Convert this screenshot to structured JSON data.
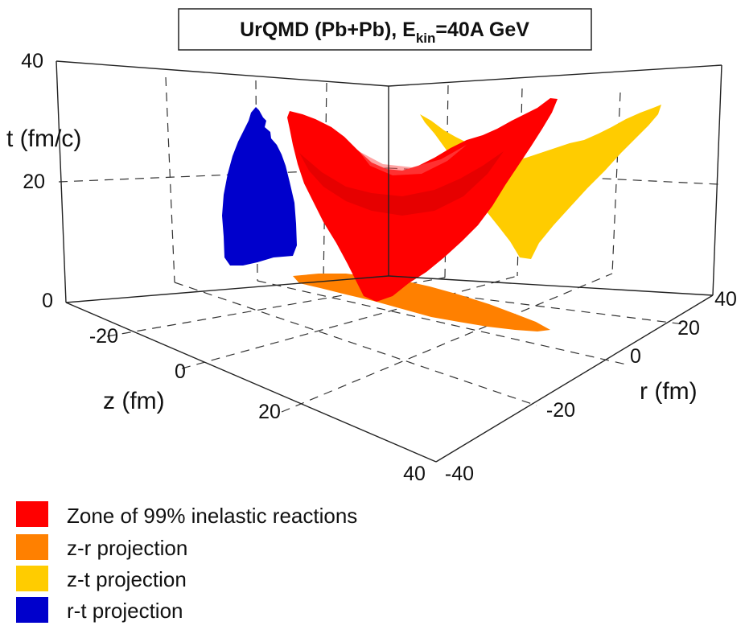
{
  "chart_data": {
    "type": "3d-surface",
    "title": {
      "prefix": "UrQMD (Pb+Pb), E",
      "subscript": "kin",
      "suffix": "=40A GeV"
    },
    "axes": {
      "t": {
        "label": "t (fm/c)",
        "range": [
          0,
          40
        ],
        "ticks": [
          "0",
          "20",
          "40"
        ]
      },
      "z": {
        "label": "z (fm)",
        "range": [
          -40,
          40
        ],
        "ticks": [
          "-20",
          "0",
          "20",
          "40"
        ]
      },
      "r": {
        "label": "r (fm)",
        "range": [
          -40,
          40
        ],
        "ticks": [
          "-40",
          "-20",
          "0",
          "20",
          "40"
        ]
      }
    },
    "grid": true,
    "legend_position": "bottom-left",
    "series": [
      {
        "id": "zone",
        "name": "Zone of 99% inelastic reactions",
        "color": "#ff0000"
      },
      {
        "id": "zr",
        "name": "z-r projection",
        "color": "#ff8000"
      },
      {
        "id": "zt",
        "name": "z-t projection",
        "color": "#ffcc00"
      },
      {
        "id": "rt",
        "name": "r-t projection",
        "color": "#0000cc"
      }
    ]
  }
}
